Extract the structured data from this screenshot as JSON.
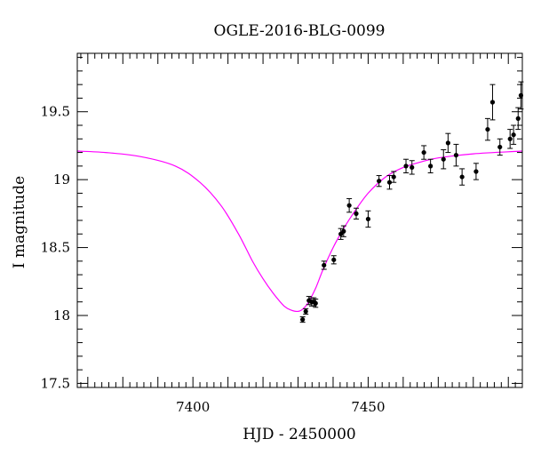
{
  "chart_data": {
    "type": "scatter",
    "title": "OGLE-2016-BLG-0099",
    "xlabel": "HJD - 2450000",
    "ylabel": "I magnitude",
    "xlim": [
      7367,
      7494
    ],
    "ylim": [
      19.93,
      17.47
    ],
    "y_inverted": true,
    "x_ticks": [
      7400,
      7450
    ],
    "x_tick_labels": [
      "7400",
      "7450"
    ],
    "y_ticks": [
      17.5,
      18,
      18.5,
      19,
      19.5
    ],
    "y_tick_labels": [
      "17.5",
      "18",
      "18.5",
      "19",
      "19.5"
    ],
    "grid": false,
    "legend": "none",
    "colors": {
      "model": "#ff00ff",
      "points": "#000000",
      "frame": "#000000"
    },
    "series": [
      {
        "kind": "model_curve",
        "x": [
          7367,
          7375,
          7385,
          7395,
          7402,
          7408,
          7413,
          7417,
          7420,
          7423,
          7426,
          7428,
          7430,
          7431.5,
          7433,
          7435,
          7437,
          7440,
          7443,
          7446,
          7450,
          7455,
          7460,
          7465,
          7470,
          7480,
          7494
        ],
        "y": [
          19.21,
          19.2,
          19.17,
          19.1,
          18.98,
          18.81,
          18.6,
          18.4,
          18.27,
          18.16,
          18.07,
          18.04,
          18.03,
          18.05,
          18.1,
          18.2,
          18.33,
          18.5,
          18.64,
          18.76,
          18.9,
          19.02,
          19.09,
          19.13,
          19.16,
          19.19,
          19.21
        ]
      },
      {
        "kind": "observations",
        "x": [
          7431.3,
          7432.2,
          7433.1,
          7433.9,
          7434.5,
          7435.0,
          7437.4,
          7440.2,
          7442.2,
          7443.0,
          7444.6,
          7446.6,
          7450.0,
          7453.1,
          7456.1,
          7457.3,
          7460.8,
          7462.5,
          7465.9,
          7467.8,
          7471.5,
          7472.8,
          7475.1,
          7476.8,
          7480.8,
          7484.1,
          7485.5,
          7487.6,
          7490.5,
          7491.5,
          7492.8,
          7493.6
        ],
        "y": [
          17.97,
          18.03,
          18.11,
          18.1,
          18.1,
          18.09,
          18.37,
          18.41,
          18.6,
          18.62,
          18.81,
          18.75,
          18.71,
          18.99,
          18.98,
          19.02,
          19.1,
          19.09,
          19.2,
          19.1,
          19.15,
          19.27,
          19.18,
          19.02,
          19.06,
          19.37,
          19.57,
          19.24,
          19.3,
          19.33,
          19.45,
          19.62
        ],
        "err": [
          0.02,
          0.02,
          0.03,
          0.03,
          0.03,
          0.03,
          0.03,
          0.03,
          0.04,
          0.04,
          0.05,
          0.04,
          0.06,
          0.04,
          0.05,
          0.04,
          0.05,
          0.05,
          0.05,
          0.05,
          0.07,
          0.07,
          0.08,
          0.06,
          0.06,
          0.08,
          0.13,
          0.06,
          0.07,
          0.07,
          0.08,
          0.1
        ]
      }
    ]
  }
}
